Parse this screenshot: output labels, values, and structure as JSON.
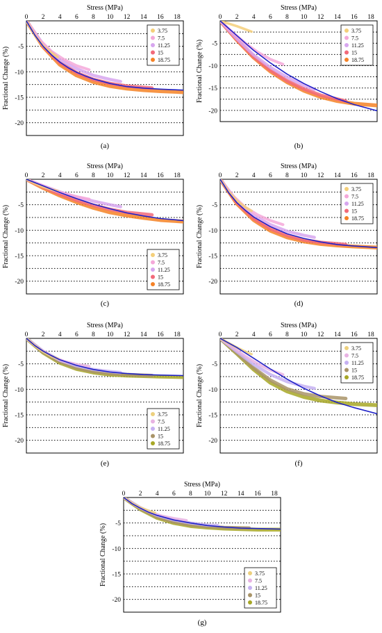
{
  "colors": {
    "fit_line": "#1f22c8",
    "legend_palette_1": [
      "#f4cf7a",
      "#f4a8d9",
      "#d7a6ef",
      "#f26a7a",
      "#f58226"
    ],
    "legend_palette_2": [
      "#ecd07e",
      "#e8b3e3",
      "#c6b1f2",
      "#a99468",
      "#a7a726"
    ]
  },
  "chart_data": [
    {
      "type": "line",
      "caption": "(a)",
      "xlabel": "Stress (MPa)",
      "ylabel": "Fractional Change (%)",
      "xlim": [
        0,
        18.75
      ],
      "ylim": [
        -22.5,
        0
      ],
      "xticks": [
        "0",
        "2",
        "4",
        "6",
        "8",
        "10",
        "12",
        "14",
        "16",
        "18"
      ],
      "yticks": [
        "-5",
        "-10",
        "-15",
        "-20"
      ],
      "legend": [
        "3.75",
        "7.5",
        "11.25",
        "15",
        "18.75"
      ],
      "legend_pos": "top-right",
      "series": [
        {
          "name": "3.75",
          "x": [
            0,
            1,
            2,
            3,
            3.75
          ],
          "y": [
            0,
            -2.8,
            -4.9,
            -6.3,
            -7.1
          ]
        },
        {
          "name": "7.5",
          "x": [
            0,
            1.5,
            3,
            4.5,
            6,
            7.5
          ],
          "y": [
            0,
            -3.6,
            -6.0,
            -7.6,
            -8.8,
            -9.6
          ]
        },
        {
          "name": "11.25",
          "x": [
            0,
            2,
            4,
            6,
            8,
            10,
            11.25
          ],
          "y": [
            0,
            -4.6,
            -7.6,
            -9.4,
            -10.7,
            -11.5,
            -11.9
          ]
        },
        {
          "name": "15",
          "x": [
            0,
            2,
            4,
            6,
            8,
            10,
            12,
            15
          ],
          "y": [
            0,
            -4.9,
            -8.2,
            -10.2,
            -11.5,
            -12.3,
            -12.8,
            -13.2
          ]
        },
        {
          "name": "18.75",
          "x": [
            0,
            2,
            4,
            6,
            8,
            10,
            12,
            14,
            16,
            18.75
          ],
          "y": [
            0,
            -5.1,
            -8.6,
            -10.7,
            -12.0,
            -12.8,
            -13.3,
            -13.6,
            -13.8,
            -14.0
          ]
        }
      ],
      "fit": {
        "x": [
          0,
          1,
          2,
          3,
          4,
          5,
          6,
          7,
          8,
          10,
          12,
          14,
          16,
          18.75
        ],
        "y": [
          0,
          -2.8,
          -5.0,
          -6.7,
          -8.1,
          -9.2,
          -10.1,
          -10.8,
          -11.4,
          -12.3,
          -12.9,
          -13.2,
          -13.4,
          -13.6
        ]
      }
    },
    {
      "type": "line",
      "caption": "(b)",
      "xlabel": "Stress (MPa)",
      "ylabel": "Fractional Change (%)",
      "xlim": [
        0,
        18.75
      ],
      "ylim": [
        -22.5,
        0
      ],
      "xticks": [
        "0",
        "2",
        "4",
        "6",
        "8",
        "10",
        "12",
        "14",
        "16",
        "18"
      ],
      "yticks": [
        "-5",
        "-10",
        "-15",
        "-20"
      ],
      "legend": [
        "3.75",
        "7.5",
        "11.25",
        "15",
        "18.75"
      ],
      "legend_pos": "top-right",
      "series": [
        {
          "name": "3.75",
          "x": [
            0,
            1,
            2,
            3,
            3.75
          ],
          "y": [
            0,
            -0.6,
            -1.2,
            -1.9,
            -2.4
          ]
        },
        {
          "name": "7.5",
          "x": [
            0,
            1.5,
            3,
            4.5,
            6,
            7.5
          ],
          "y": [
            0,
            -2.6,
            -5.0,
            -7.0,
            -8.6,
            -9.7
          ]
        },
        {
          "name": "11.25",
          "x": [
            0,
            2,
            4,
            6,
            8,
            10,
            11.25
          ],
          "y": [
            0,
            -4.0,
            -7.6,
            -10.4,
            -12.6,
            -14.4,
            -15.3
          ]
        },
        {
          "name": "15",
          "x": [
            0,
            2,
            4,
            6,
            8,
            10,
            12,
            15
          ],
          "y": [
            0,
            -4.2,
            -8.0,
            -11.0,
            -13.4,
            -15.2,
            -16.6,
            -17.9
          ]
        },
        {
          "name": "18.75",
          "x": [
            0,
            2,
            4,
            6,
            8,
            10,
            12,
            14,
            16,
            18.75
          ],
          "y": [
            0,
            -4.3,
            -8.2,
            -11.3,
            -13.7,
            -15.6,
            -17.0,
            -17.9,
            -18.5,
            -18.9
          ]
        }
      ],
      "fit": {
        "x": [
          0,
          2,
          4,
          6,
          8,
          10,
          12,
          14,
          16,
          18.75
        ],
        "y": [
          0,
          -3.3,
          -6.6,
          -9.4,
          -11.9,
          -14.0,
          -15.8,
          -17.4,
          -18.7,
          -20.1
        ]
      }
    },
    {
      "type": "line",
      "caption": "(c)",
      "xlabel": "Stress (MPa)",
      "ylabel": "Fractional Change (%)",
      "xlim": [
        0,
        18.75
      ],
      "ylim": [
        -22.5,
        0
      ],
      "xticks": [
        "0",
        "2",
        "4",
        "6",
        "8",
        "10",
        "12",
        "14",
        "16",
        "18"
      ],
      "yticks": [
        "-5",
        "-10",
        "-15",
        "-20"
      ],
      "legend": [
        "3.75",
        "7.5",
        "11.25",
        "15",
        "18.75"
      ],
      "legend_pos": "bottom-right",
      "series": [
        {
          "name": "3.75",
          "x": [
            0,
            1,
            2,
            3,
            3.75
          ],
          "y": [
            0,
            -0.8,
            -1.5,
            -2.0,
            -2.3
          ]
        },
        {
          "name": "7.5",
          "x": [
            0,
            1.5,
            3,
            4.5,
            6,
            7.5
          ],
          "y": [
            0,
            -1.0,
            -2.0,
            -2.8,
            -3.4,
            -3.9
          ]
        },
        {
          "name": "11.25",
          "x": [
            0,
            2,
            4,
            6,
            8,
            10,
            11.25
          ],
          "y": [
            0,
            -1.3,
            -2.5,
            -3.5,
            -4.3,
            -5.0,
            -5.4
          ]
        },
        {
          "name": "15",
          "x": [
            0,
            2,
            4,
            6,
            8,
            10,
            12,
            15
          ],
          "y": [
            0,
            -1.5,
            -2.9,
            -4.1,
            -5.1,
            -5.9,
            -6.5,
            -7.0
          ]
        },
        {
          "name": "18.75",
          "x": [
            0,
            2,
            4,
            6,
            8,
            10,
            12,
            14,
            16,
            18.75
          ],
          "y": [
            0,
            -1.7,
            -3.2,
            -4.5,
            -5.6,
            -6.5,
            -7.1,
            -7.6,
            -8.0,
            -8.3
          ]
        }
      ],
      "fit": {
        "x": [
          0,
          2,
          4,
          6,
          8,
          10,
          12,
          14,
          16,
          18.75
        ],
        "y": [
          0,
          -1.3,
          -2.6,
          -3.8,
          -4.9,
          -5.8,
          -6.6,
          -7.2,
          -7.7,
          -8.1
        ]
      }
    },
    {
      "type": "line",
      "caption": "(d)",
      "xlabel": "Stress (MPa)",
      "ylabel": "Fractional Change (%)",
      "xlim": [
        0,
        18.75
      ],
      "ylim": [
        -22.5,
        0
      ],
      "xticks": [
        "0",
        "2",
        "4",
        "6",
        "8",
        "10",
        "12",
        "14",
        "16",
        "18"
      ],
      "yticks": [
        "-5",
        "-10",
        "-15",
        "-20"
      ],
      "legend": [
        "3.75",
        "7.5",
        "11.25",
        "15",
        "18.75"
      ],
      "legend_pos": "top-right",
      "series": [
        {
          "name": "3.75",
          "x": [
            0,
            1,
            2,
            3,
            3.75
          ],
          "y": [
            0,
            -2.4,
            -4.2,
            -5.5,
            -6.2
          ]
        },
        {
          "name": "7.5",
          "x": [
            0,
            1.5,
            3,
            4.5,
            6,
            7.5
          ],
          "y": [
            0,
            -3.2,
            -5.5,
            -7.0,
            -8.1,
            -8.9
          ]
        },
        {
          "name": "11.25",
          "x": [
            0,
            2,
            4,
            6,
            8,
            10,
            11.25
          ],
          "y": [
            0,
            -4.3,
            -7.1,
            -8.9,
            -10.2,
            -11.0,
            -11.4
          ]
        },
        {
          "name": "15",
          "x": [
            0,
            2,
            4,
            6,
            8,
            10,
            12,
            15
          ],
          "y": [
            0,
            -4.6,
            -7.7,
            -9.7,
            -11.0,
            -11.9,
            -12.4,
            -12.8
          ]
        },
        {
          "name": "18.75",
          "x": [
            0,
            2,
            4,
            6,
            8,
            10,
            12,
            14,
            16,
            18.75
          ],
          "y": [
            0,
            -4.8,
            -8.0,
            -10.1,
            -11.4,
            -12.2,
            -12.7,
            -13.0,
            -13.2,
            -13.4
          ]
        }
      ],
      "fit": {
        "x": [
          0,
          1,
          2,
          3,
          4,
          6,
          8,
          10,
          12,
          14,
          16,
          18.75
        ],
        "y": [
          0,
          -2.6,
          -4.6,
          -6.1,
          -7.4,
          -9.3,
          -10.7,
          -11.6,
          -12.3,
          -12.8,
          -13.1,
          -13.4
        ]
      }
    },
    {
      "type": "line",
      "caption": "(e)",
      "xlabel": "Stress (MPa)",
      "ylabel": "Fractional Change (%)",
      "xlim": [
        0,
        18.75
      ],
      "ylim": [
        -22.5,
        0
      ],
      "xticks": [
        "0",
        "2",
        "4",
        "6",
        "8",
        "10",
        "12",
        "14",
        "16",
        "18"
      ],
      "yticks": [
        "-5",
        "-10",
        "-15",
        "-20"
      ],
      "legend": [
        "3.75",
        "7.5",
        "11.25",
        "15",
        "18.75"
      ],
      "legend_pos": "bottom-right",
      "series": [
        {
          "name": "3.75",
          "x": [
            0,
            1,
            2,
            3,
            3.75
          ],
          "y": [
            0,
            -1.4,
            -2.6,
            -3.5,
            -4.0
          ]
        },
        {
          "name": "7.5",
          "x": [
            0,
            1.5,
            3,
            4.5,
            6,
            7.5
          ],
          "y": [
            0,
            -2.0,
            -3.5,
            -4.5,
            -5.1,
            -5.5
          ]
        },
        {
          "name": "11.25",
          "x": [
            0,
            2,
            4,
            6,
            8,
            10,
            11.25
          ],
          "y": [
            0,
            -2.5,
            -4.3,
            -5.4,
            -6.1,
            -6.5,
            -6.7
          ]
        },
        {
          "name": "15",
          "x": [
            0,
            2,
            4,
            6,
            8,
            10,
            12,
            15
          ],
          "y": [
            0,
            -2.7,
            -4.6,
            -5.8,
            -6.5,
            -6.9,
            -7.1,
            -7.3
          ]
        },
        {
          "name": "18.75",
          "x": [
            0,
            2,
            4,
            6,
            8,
            10,
            12,
            14,
            16,
            18.75
          ],
          "y": [
            0,
            -2.8,
            -4.8,
            -6.0,
            -6.7,
            -7.1,
            -7.3,
            -7.4,
            -7.5,
            -7.6
          ]
        }
      ],
      "fit": {
        "x": [
          0,
          1,
          2,
          3,
          4,
          6,
          8,
          10,
          12,
          14,
          16,
          18.75
        ],
        "y": [
          0,
          -1.4,
          -2.5,
          -3.4,
          -4.2,
          -5.3,
          -6.1,
          -6.6,
          -6.9,
          -7.1,
          -7.2,
          -7.3
        ]
      }
    },
    {
      "type": "line",
      "caption": "(f)",
      "xlabel": "Stress (MPa)",
      "ylabel": "Fractional Change (%)",
      "xlim": [
        0,
        18.75
      ],
      "ylim": [
        -22.5,
        0
      ],
      "xticks": [
        "0",
        "2",
        "4",
        "6",
        "8",
        "10",
        "12",
        "14",
        "16",
        "18"
      ],
      "yticks": [
        "-5",
        "-10",
        "-15",
        "-20"
      ],
      "legend": [
        "3.75",
        "7.5",
        "11.25",
        "15",
        "18.75"
      ],
      "legend_pos": "top-right",
      "series": [
        {
          "name": "3.75",
          "x": [
            0,
            1,
            2,
            3,
            3.75
          ],
          "y": [
            0,
            -0.9,
            -1.8,
            -2.6,
            -3.1
          ]
        },
        {
          "name": "7.5",
          "x": [
            0,
            1.5,
            3,
            4.5,
            6,
            7.5
          ],
          "y": [
            0,
            -1.8,
            -3.5,
            -5.0,
            -6.2,
            -7.1
          ]
        },
        {
          "name": "11.25",
          "x": [
            0,
            2,
            4,
            6,
            8,
            10,
            11.25
          ],
          "y": [
            0,
            -2.6,
            -5.1,
            -7.1,
            -8.5,
            -9.4,
            -9.8
          ]
        },
        {
          "name": "15",
          "x": [
            0,
            2,
            4,
            6,
            8,
            10,
            12,
            15
          ],
          "y": [
            0,
            -2.9,
            -5.8,
            -8.2,
            -9.9,
            -10.9,
            -11.4,
            -11.8
          ]
        },
        {
          "name": "18.75",
          "x": [
            0,
            2,
            4,
            6,
            8,
            10,
            12,
            14,
            16,
            18.75
          ],
          "y": [
            0,
            -3.0,
            -6.1,
            -8.7,
            -10.4,
            -11.5,
            -12.2,
            -12.6,
            -12.9,
            -13.1
          ]
        }
      ],
      "fit": {
        "x": [
          0,
          2,
          4,
          6,
          8,
          10,
          12,
          14,
          16,
          18.75
        ],
        "y": [
          0,
          -1.8,
          -3.9,
          -6.0,
          -8.0,
          -9.8,
          -11.3,
          -12.6,
          -13.6,
          -14.8
        ]
      }
    },
    {
      "type": "line",
      "caption": "(g)",
      "xlabel": "Stress (MPa)",
      "ylabel": "Fractional Change (%)",
      "xlim": [
        0,
        18.75
      ],
      "ylim": [
        -22.5,
        0
      ],
      "xticks": [
        "0",
        "2",
        "4",
        "6",
        "8",
        "10",
        "12",
        "14",
        "16",
        "18"
      ],
      "yticks": [
        "-5",
        "-10",
        "-15",
        "-20"
      ],
      "legend": [
        "3.75",
        "7.5",
        "11.25",
        "15",
        "18.75"
      ],
      "legend_pos": "bottom-right",
      "series": [
        {
          "name": "3.75",
          "x": [
            0,
            1,
            2,
            3,
            3.75
          ],
          "y": [
            0,
            -1.1,
            -2.0,
            -2.6,
            -3.0
          ]
        },
        {
          "name": "7.5",
          "x": [
            0,
            1.5,
            3,
            4.5,
            6,
            7.5
          ],
          "y": [
            0,
            -1.6,
            -2.8,
            -3.6,
            -4.1,
            -4.5
          ]
        },
        {
          "name": "11.25",
          "x": [
            0,
            2,
            4,
            6,
            8,
            10,
            11.25
          ],
          "y": [
            0,
            -2.0,
            -3.5,
            -4.4,
            -5.0,
            -5.4,
            -5.5
          ]
        },
        {
          "name": "15",
          "x": [
            0,
            2,
            4,
            6,
            8,
            10,
            12,
            15
          ],
          "y": [
            0,
            -2.2,
            -3.8,
            -4.8,
            -5.4,
            -5.7,
            -5.9,
            -6.0
          ]
        },
        {
          "name": "18.75",
          "x": [
            0,
            2,
            4,
            6,
            8,
            10,
            12,
            14,
            16,
            18.75
          ],
          "y": [
            0,
            -2.3,
            -4.0,
            -5.0,
            -5.6,
            -5.9,
            -6.1,
            -6.2,
            -6.3,
            -6.3
          ]
        }
      ],
      "fit": {
        "x": [
          0,
          1,
          2,
          3,
          4,
          6,
          8,
          10,
          12,
          14,
          16,
          18.75
        ],
        "y": [
          0,
          -1.2,
          -2.1,
          -2.9,
          -3.5,
          -4.4,
          -5.0,
          -5.5,
          -5.8,
          -6.0,
          -6.1,
          -6.2
        ]
      }
    }
  ]
}
